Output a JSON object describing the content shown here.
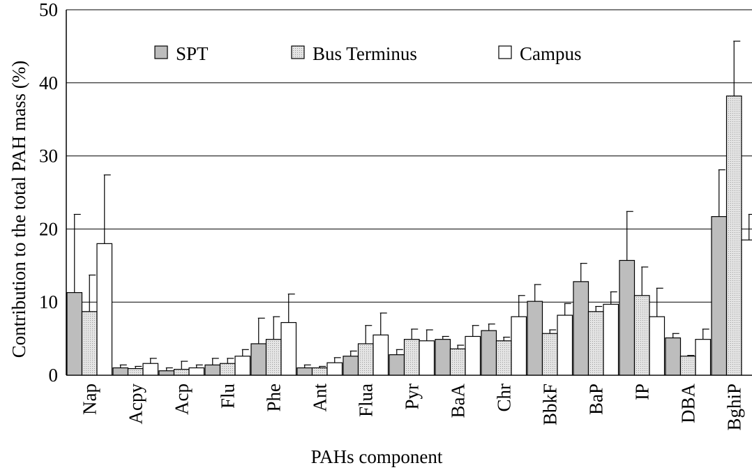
{
  "chart_data": {
    "type": "bar",
    "y_label": "Contribution to the total PAH mass (%)",
    "x_label": "PAHs component",
    "categories": [
      "Nap",
      "Acpy",
      "Acp",
      "Flu",
      "Phe",
      "Ant",
      "Flua",
      "Pyr",
      "BaA",
      "Chr",
      "BbkF",
      "BaP",
      "IP",
      "DBA",
      "BghiP"
    ],
    "series": [
      {
        "name": "SPT",
        "color": "#bdbdbd",
        "values": [
          11.3,
          1.0,
          0.6,
          1.4,
          4.3,
          1.0,
          2.6,
          2.8,
          4.9,
          6.1,
          10.1,
          12.8,
          15.7,
          5.1,
          21.7
        ],
        "errors": [
          10.7,
          0.4,
          0.4,
          0.9,
          3.5,
          0.4,
          0.7,
          0.7,
          0.4,
          0.9,
          2.3,
          2.5,
          6.7,
          0.6,
          6.4
        ]
      },
      {
        "name": "Bus Terminus",
        "color": "#dedede",
        "values": [
          8.7,
          0.9,
          0.8,
          1.6,
          4.9,
          1.0,
          4.3,
          4.9,
          3.6,
          4.7,
          5.7,
          8.7,
          10.9,
          2.6,
          38.2
        ],
        "errors": [
          5.0,
          0.3,
          1.1,
          0.7,
          3.1,
          0.2,
          2.5,
          1.4,
          0.5,
          0.5,
          0.5,
          0.7,
          3.9,
          0.1,
          7.5
        ]
      },
      {
        "name": "Campus",
        "color": "#ffffff",
        "values": [
          18.0,
          1.6,
          1.0,
          2.6,
          7.2,
          1.7,
          5.5,
          4.7,
          5.3,
          8.0,
          8.2,
          9.7,
          8.0,
          4.9,
          18.5
        ],
        "errors": [
          9.4,
          0.7,
          0.4,
          0.9,
          3.9,
          0.7,
          3.0,
          1.5,
          1.5,
          2.9,
          1.6,
          1.7,
          3.9,
          1.4,
          3.5
        ]
      }
    ],
    "ylim": [
      0,
      50
    ],
    "yticks": [
      0,
      10,
      20,
      30,
      40,
      50
    ],
    "grid": true
  }
}
